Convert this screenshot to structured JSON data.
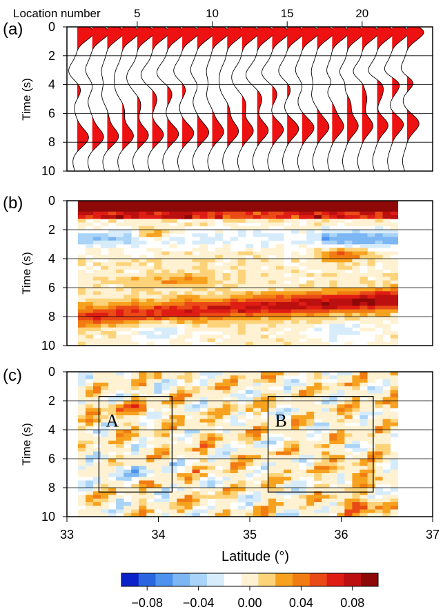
{
  "colors": {
    "positive": "#ee1111",
    "negative": "#3a8fe6",
    "scale": [
      "#0a22c8",
      "#2a66df",
      "#4d93ee",
      "#7cb6f3",
      "#a9d3f7",
      "#d7ecfb",
      "#ffffff",
      "#fff2d2",
      "#fdd37a",
      "#f7a21f",
      "#f17c12",
      "#e94a16",
      "#df1d14",
      "#bb100f",
      "#8e0808"
    ]
  },
  "chart_data": [
    {
      "panel": "(a)",
      "type": "line",
      "top_axis_label": "Location number",
      "top_ticks": [
        "5",
        "10",
        "15",
        "20"
      ],
      "ylabel": "Time (s)",
      "yticks": [
        "0",
        "2",
        "4",
        "6",
        "8",
        "10"
      ],
      "ylim": [
        0,
        10
      ],
      "station_count": 23
    },
    {
      "panel": "(b)",
      "type": "heatmap",
      "ylabel": "Time (s)",
      "yticks": [
        "0",
        "2",
        "4",
        "6",
        "8",
        "10"
      ],
      "ylim": [
        0,
        10
      ]
    },
    {
      "panel": "(c)",
      "type": "heatmap",
      "ylabel": "Time (s)",
      "yticks": [
        "0",
        "2",
        "4",
        "6",
        "8",
        "10"
      ],
      "ylim": [
        0,
        10
      ],
      "xlabel": "Latitude (°)",
      "xticks": [
        "33",
        "34",
        "35",
        "36",
        "37"
      ],
      "xlim": [
        33,
        37
      ],
      "annotations": [
        {
          "label": "A",
          "lat_range": [
            33.35,
            34.15
          ],
          "time_range": [
            1.7,
            8.3
          ]
        },
        {
          "label": "B",
          "lat_range": [
            35.2,
            36.35
          ],
          "time_range": [
            1.7,
            8.3
          ]
        }
      ]
    }
  ],
  "colorbar": {
    "tick_labels": [
      "−0.08",
      "−0.04",
      "0.00",
      "0.04",
      "0.08"
    ],
    "range": [
      -0.1,
      0.1
    ]
  }
}
